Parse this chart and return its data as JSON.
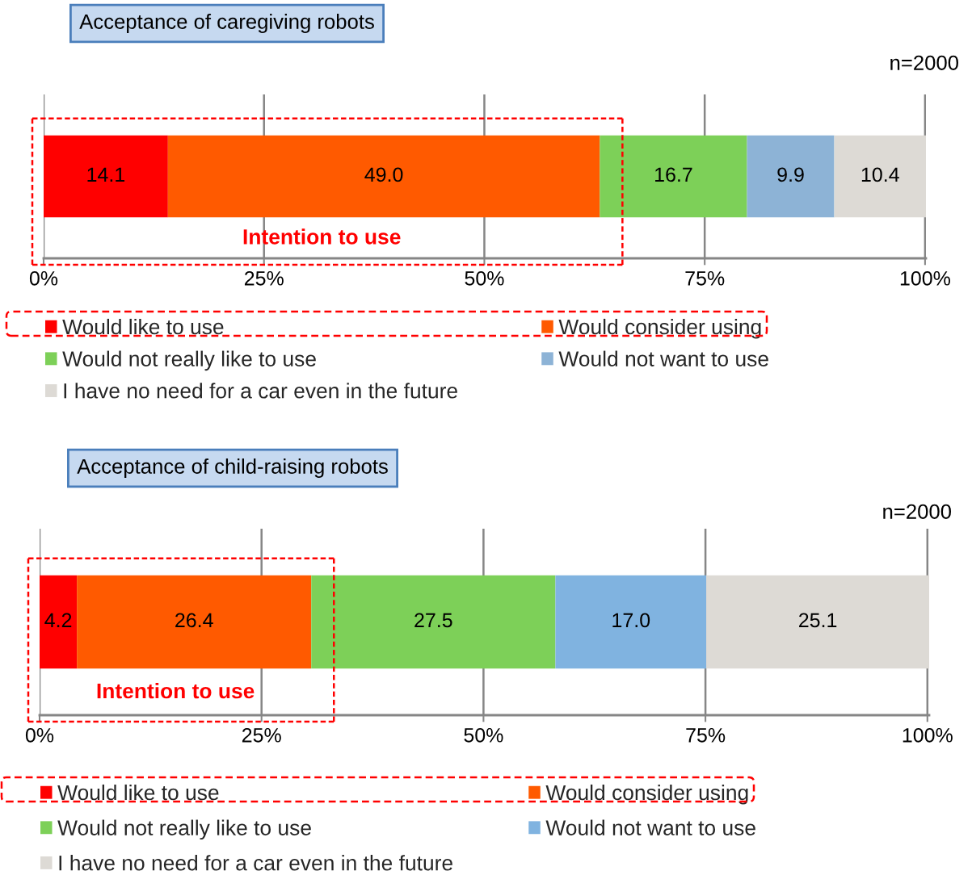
{
  "chart_data": [
    {
      "type": "bar",
      "orientation": "horizontal",
      "stacked": true,
      "title": "Acceptance of caregiving robots",
      "annotations": [
        "n=2000",
        "Intention to use"
      ],
      "categories": [
        null
      ],
      "series": [
        {
          "name": "Would like to use",
          "color": "#ff0000",
          "values": [
            14.1
          ],
          "value_labels": [
            "14.1"
          ]
        },
        {
          "name": "Would consider using",
          "color": "#ff5a00",
          "values": [
            49.0
          ],
          "value_labels": [
            "49.0"
          ]
        },
        {
          "name": "Would not really like to use",
          "color": "#7dd058",
          "values": [
            16.7
          ],
          "value_labels": [
            "16.7"
          ]
        },
        {
          "name": "Would not want to use",
          "color": "#8db3d6",
          "values": [
            9.9
          ],
          "value_labels": [
            "9.9"
          ]
        },
        {
          "name": "I have no need for a car even in the future",
          "color": "#dddad5",
          "values": [
            10.4
          ],
          "value_labels": [
            "10.4"
          ]
        }
      ],
      "xlim": [
        0,
        100.1
      ],
      "xticks": [
        {
          "value": 0,
          "label": "0%"
        },
        {
          "value": 25,
          "label": "25%"
        },
        {
          "value": 50,
          "label": "50%"
        },
        {
          "value": 75,
          "label": "75%"
        },
        {
          "value": 100,
          "label": "100%"
        }
      ],
      "grid": "x",
      "legend": "bottom",
      "tick_labels": "x"
    },
    {
      "type": "bar",
      "orientation": "horizontal",
      "stacked": true,
      "title": "Acceptance of child-raising robots",
      "annotations": [
        "n=2000",
        "Intention to use"
      ],
      "categories": [
        null
      ],
      "series": [
        {
          "name": "Would like to use",
          "color": "#ff0000",
          "values": [
            4.2
          ],
          "value_labels": [
            "4.2"
          ]
        },
        {
          "name": "Would consider using",
          "color": "#ff5a00",
          "values": [
            26.4
          ],
          "value_labels": [
            "26.4"
          ]
        },
        {
          "name": "Would not really like to use",
          "color": "#7dd058",
          "values": [
            27.5
          ],
          "value_labels": [
            "27.5"
          ]
        },
        {
          "name": "Would not want to use",
          "color": "#80b3e0",
          "values": [
            17.0
          ],
          "value_labels": [
            "17.0"
          ]
        },
        {
          "name": "I have no need for a car even in the future",
          "color": "#dddad5",
          "values": [
            25.1
          ],
          "value_labels": [
            "25.1"
          ]
        }
      ],
      "xlim": [
        0,
        100.2
      ],
      "xticks": [
        {
          "value": 0,
          "label": "0%"
        },
        {
          "value": 25,
          "label": "25%"
        },
        {
          "value": 50,
          "label": "50%"
        },
        {
          "value": 75,
          "label": "75%"
        },
        {
          "value": 100,
          "label": "100%"
        }
      ],
      "grid": "x",
      "legend": "bottom",
      "tick_labels": "x"
    }
  ]
}
